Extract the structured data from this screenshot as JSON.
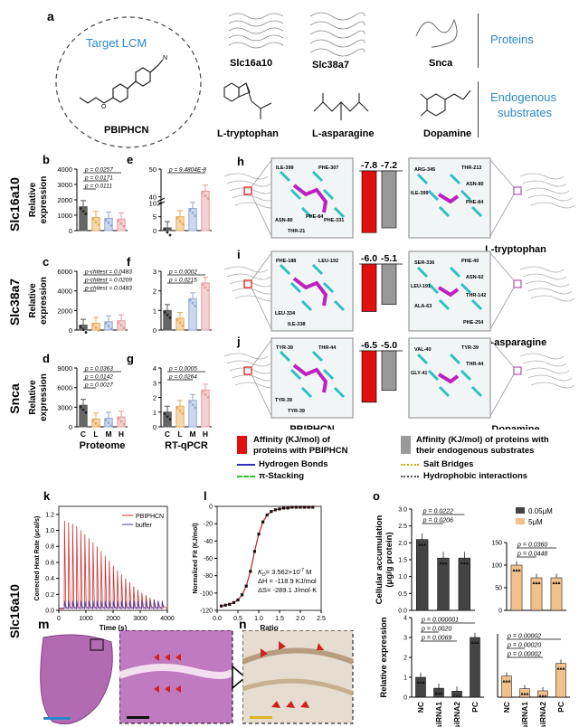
{
  "panel_a": {
    "letter": "a",
    "target_label": "Target LCM",
    "compound": "PBIPHCN",
    "proteins": [
      "Slc16a10",
      "Slc38a7",
      "Snca"
    ],
    "proteins_label": "Proteins",
    "substrates": [
      "L-tryptophan",
      "L-asparagine",
      "Dopamine"
    ],
    "substrates_label_1": "Endogenous",
    "substrates_label_2": "substrates"
  },
  "row_labels": [
    "Slc16a10",
    "Slc38a7",
    "Snca",
    "Slc16a10"
  ],
  "proteome": {
    "xlabel": "Proteome",
    "ylabel": "Relative expression",
    "groups": [
      "C",
      "L",
      "M",
      "H"
    ],
    "colors": [
      "#555555",
      "#e8a94f",
      "#8fa9d6",
      "#e89a9a"
    ]
  },
  "qpcr": {
    "xlabel": "RT-qPCR",
    "groups": [
      "C",
      "L",
      "M",
      "H"
    ],
    "colors": [
      "#555555",
      "#e8a94f",
      "#8fa9d6",
      "#e89a9a"
    ]
  },
  "chart_data": [
    {
      "id": "b",
      "type": "bar",
      "categories": [
        "C",
        "L",
        "M",
        "H"
      ],
      "values": [
        1550,
        850,
        800,
        750
      ],
      "ylim": [
        0,
        4000
      ],
      "yticks": [
        0,
        1000,
        2000,
        3000,
        4000
      ],
      "ylabel": "Relative expression",
      "pvalues": [
        "p = 0.0257",
        "p = 0.0171",
        "p = 0.0111"
      ]
    },
    {
      "id": "c",
      "type": "bar",
      "categories": [
        "C",
        "L",
        "M",
        "H"
      ],
      "values": [
        500,
        700,
        850,
        950
      ],
      "ylim": [
        0,
        6000
      ],
      "yticks": [
        0,
        2000,
        4000,
        6000
      ],
      "ylabel": "Relative expression",
      "pvalues": [
        "p-chitest = 0.0483",
        "p-chitest = 0.0209",
        "p-chitest = 0.0483"
      ]
    },
    {
      "id": "d",
      "type": "bar",
      "categories": [
        "C",
        "L",
        "M",
        "H"
      ],
      "values": [
        3300,
        1200,
        1300,
        1500
      ],
      "ylim": [
        0,
        9000
      ],
      "yticks": [
        0,
        3000,
        6000,
        9000
      ],
      "ylabel": "Relative expression",
      "xlabel": "Proteome",
      "pvalues": [
        "p = 0.0363",
        "p = 0.0142",
        "p = 0.0027"
      ]
    },
    {
      "id": "e",
      "type": "bar",
      "categories": [
        "C",
        "L",
        "M",
        "H"
      ],
      "values": [
        1,
        5,
        8,
        42
      ],
      "ytick_labels": [
        "0",
        "5",
        "10",
        "40",
        "50"
      ],
      "pvalues": [
        "p = 9.4804E-8"
      ]
    },
    {
      "id": "f",
      "type": "bar",
      "categories": [
        "C",
        "L",
        "M",
        "H"
      ],
      "values": [
        1.0,
        0.6,
        1.6,
        2.4
      ],
      "ylim": [
        0,
        3
      ],
      "yticks": [
        0,
        1,
        2,
        3
      ],
      "pvalues": [
        "p = 0.0002",
        "p = 0.0215"
      ]
    },
    {
      "id": "g",
      "type": "bar",
      "categories": [
        "C",
        "L",
        "M",
        "H"
      ],
      "values": [
        1.0,
        1.4,
        1.8,
        2.5
      ],
      "ylim": [
        0,
        4
      ],
      "yticks": [
        0,
        1,
        2,
        3,
        4
      ],
      "xlabel": "RT-qPCR",
      "pvalues": [
        "p = 0.0005",
        "p = 0.0264"
      ]
    },
    {
      "id": "h_aff",
      "type": "bar",
      "categories": [
        "PBIPHCN",
        "substrate"
      ],
      "values": [
        -7.8,
        -7.2
      ],
      "labels": [
        "-7.8",
        "-7.2"
      ]
    },
    {
      "id": "i_aff",
      "type": "bar",
      "categories": [
        "PBIPHCN",
        "substrate"
      ],
      "values": [
        -6.0,
        -5.1
      ],
      "labels": [
        "-6.0",
        "-5.1"
      ]
    },
    {
      "id": "j_aff",
      "type": "bar",
      "categories": [
        "PBIPHCN",
        "substrate"
      ],
      "values": [
        -6.5,
        -5.0
      ],
      "labels": [
        "-6.5",
        "-5.0"
      ]
    },
    {
      "id": "k",
      "type": "line",
      "xlabel": "Time (s)",
      "ylabel": "Corrected Heat Rate (μcal/s)",
      "xticks": [
        0,
        1000,
        2000,
        3000,
        4000
      ],
      "yticks": [
        0.0,
        0.2,
        0.4,
        0.6,
        0.8,
        1.0,
        1.2
      ],
      "xlim": [
        0,
        4000
      ],
      "ylim": [
        0,
        1.3
      ],
      "series": [
        {
          "name": "PBIPHCN",
          "color": "#d03030"
        },
        {
          "name": "buffer",
          "color": "#3a3aaa"
        }
      ],
      "injection_peaks": [
        1.12,
        1.1,
        1.08,
        1.05,
        1.0,
        0.95,
        0.9,
        0.85,
        0.8,
        0.74,
        0.68,
        0.62,
        0.56,
        0.5,
        0.45,
        0.4,
        0.35,
        0.3,
        0.26,
        0.22,
        0.19,
        0.16,
        0.14,
        0.12,
        0.1
      ]
    },
    {
      "id": "l",
      "type": "scatter",
      "xlabel": "Ratio",
      "ylabel": "Normalized Fit (KJ/mol)",
      "xlim": [
        0,
        2.5
      ],
      "ylim": [
        -120,
        0
      ],
      "xticks": [
        "0.0",
        "0.5",
        "1.0",
        "1.5",
        "2.0",
        "2.5"
      ],
      "yticks": [
        "0",
        "-20",
        "-40",
        "-60",
        "-80",
        "-100",
        "-120"
      ],
      "x": [
        0.1,
        0.2,
        0.3,
        0.4,
        0.5,
        0.6,
        0.7,
        0.8,
        0.9,
        1.0,
        1.1,
        1.2,
        1.3,
        1.4,
        1.5,
        1.6,
        1.7,
        1.8,
        1.9,
        2.0,
        2.1,
        2.2,
        2.3
      ],
      "y": [
        -115,
        -114,
        -113,
        -111,
        -108,
        -102,
        -92,
        -75,
        -52,
        -32,
        -18,
        -10,
        -6,
        -4,
        -3,
        -2,
        -2,
        -1,
        -1,
        -1,
        -1,
        -1,
        -1
      ]
    },
    {
      "id": "o_top_left",
      "type": "bar",
      "categories": [
        "NC",
        "siRNA1",
        "siRNA2"
      ],
      "values": [
        2.1,
        1.55,
        1.55
      ],
      "ylim": [
        0,
        3.0
      ],
      "yticks": [
        "0.0",
        "0.5",
        "1.0",
        "1.5",
        "2.0",
        "2.5",
        "3.0"
      ],
      "ylabel": "Cellular accumulation (μg/g protein)",
      "series_name": "0.05μM",
      "color": "#444444",
      "pvalues": [
        "p = 0.0222",
        "p = 0.0206"
      ]
    },
    {
      "id": "o_top_right",
      "type": "bar",
      "categories": [
        "NC",
        "siRNA1",
        "siRNA2"
      ],
      "values": [
        100,
        72,
        72
      ],
      "ylim": [
        0,
        150
      ],
      "yticks": [
        "0",
        "50",
        "100",
        "150"
      ],
      "series_name": "5μM",
      "color": "#f2c08a",
      "pvalues": [
        "p = 0.0360",
        "p = 0.0448"
      ]
    },
    {
      "id": "o_bottom_left",
      "type": "bar",
      "categories": [
        "NC",
        "siRNA1",
        "siRNA2",
        "PC"
      ],
      "values": [
        1.0,
        0.45,
        0.3,
        3.0
      ],
      "ylim": [
        0,
        4
      ],
      "yticks": [
        "0",
        "1",
        "2",
        "3",
        "4"
      ],
      "ylabel": "Relative expression",
      "color": "#444444",
      "pvalues": [
        "p = 0.000001",
        "p = 0.0020",
        "p = 0.0069"
      ]
    },
    {
      "id": "o_bottom_right",
      "type": "bar",
      "categories": [
        "NC",
        "siRNA1",
        "siRNA2",
        "PC"
      ],
      "values": [
        1.0,
        0.4,
        0.3,
        1.6
      ],
      "ylim": [
        0,
        3
      ],
      "color": "#f2c08a",
      "pvalues": [
        "p = 0.00002",
        "p = 0.00020",
        "p = 0.00002"
      ]
    }
  ],
  "docking": {
    "h_residues_left": [
      "ILE-399",
      "PHE-307",
      "ASN-80",
      "THR-21",
      "PHE-331",
      "PHE-84"
    ],
    "h_residues_right": [
      "ARG-345",
      "THR-213",
      "ILE-399",
      "ASN-80",
      "PHE-84"
    ],
    "i_residues_left": [
      "PHE-188",
      "LEU-192",
      "LEU-334",
      "ILE-338"
    ],
    "i_residues_right": [
      "SER-336",
      "PHE-40",
      "LEU-191",
      "ASN-62",
      "THR-142",
      "ALA-63",
      "PHE-254"
    ],
    "j_residues_left": [
      "TYR-39",
      "THR-44",
      "TYR-39",
      "TYR-39"
    ],
    "j_residues_right": [
      "VAL-40",
      "TYR-39",
      "GLY-41",
      "THR-44"
    ],
    "compound_label": "PBIPHCN",
    "substrate_labels": [
      "L-tryptophan",
      "L-asparagine",
      "Dopamine"
    ]
  },
  "legend": {
    "red_text_1": "Affinity (KJ/mol) of",
    "red_text_2": "proteins with PBIPHCN",
    "grey_text_1": "Affinity (KJ/mol) of proteins with",
    "grey_text_2": "their endogenous substrates",
    "hbond": "Hydrogen Bonds",
    "pi": "π-Stacking",
    "salt": "Salt Bridges",
    "hydro": "Hydrophobic interactions",
    "colors": {
      "red": "#e01010",
      "grey": "#999999",
      "hbond": "#3030c0",
      "pi": "#30c030",
      "salt": "#c9b400",
      "hydro": "#555555"
    }
  },
  "itc": {
    "legend_pbiphcn": "PBIPHCN",
    "legend_buffer": "buffer",
    "kd": "K",
    "kd_sub": "D",
    "kd_val": "= 3.562×10",
    "kd_exp": "-7",
    "kd_unit": " M",
    "dh": "ΔH = -118.9 KJ/mol",
    "ds": "ΔS= -289.1 J/mol·K"
  },
  "panel_o_legend": [
    "0.05μM",
    "5μM"
  ],
  "letters": [
    "b",
    "c",
    "d",
    "e",
    "f",
    "g",
    "h",
    "i",
    "j",
    "k",
    "l",
    "m",
    "n",
    "o"
  ]
}
